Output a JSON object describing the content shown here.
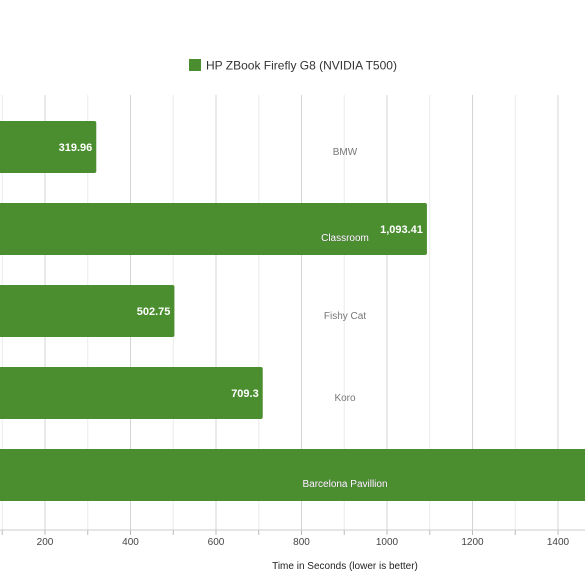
{
  "chart_data": {
    "type": "bar",
    "orientation": "horizontal",
    "series": [
      {
        "name": "HP ZBook Firefly G8 (NVIDIA T500)",
        "color": "#4a8e2f",
        "values": [
          319.96,
          1093.41,
          502.75,
          709.3,
          1500
        ]
      }
    ],
    "categories": [
      "BMW",
      "Classroom",
      "Fishy Cat",
      "Koro",
      "Barcelona Pavillion"
    ],
    "value_labels": [
      "319.96",
      "1,093.41",
      "502.75",
      "709.3",
      ""
    ],
    "xlabel": "Time in Seconds (lower is better)",
    "ylabel": "",
    "xticks": [
      200,
      400,
      600,
      800,
      1000,
      1200,
      1400
    ],
    "xlim": [
      100,
      1460
    ],
    "grid": true,
    "legend_position": "top"
  }
}
